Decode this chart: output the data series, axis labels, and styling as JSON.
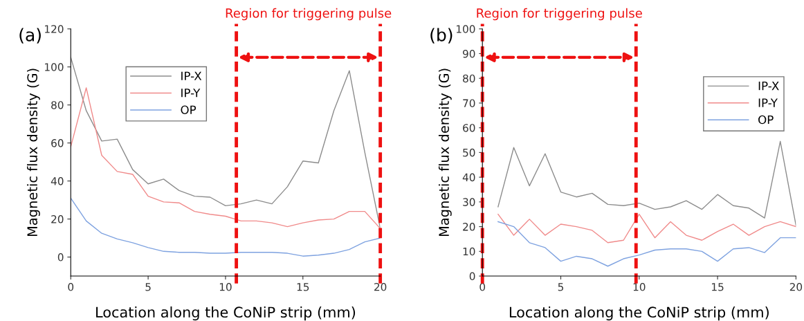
{
  "chart_data": [
    {
      "type": "line",
      "title": "(a)",
      "xlabel": "Location along the CoNiP strip (mm)",
      "ylabel": "Magnetic flux density (G)",
      "x": [
        0,
        1,
        2,
        3,
        4,
        5,
        6,
        7,
        8,
        9,
        10,
        11,
        12,
        13,
        14,
        15,
        16,
        17,
        18,
        19,
        20
      ],
      "series": [
        {
          "name": "IP-X",
          "color": "#8c8c8c",
          "values": [
            105,
            77,
            61,
            62,
            46,
            38.5,
            41,
            35,
            32,
            31.5,
            27,
            28,
            30,
            28,
            37,
            50.5,
            49.5,
            77,
            98,
            55,
            15
          ]
        },
        {
          "name": "IP-Y",
          "color": "#f08a8a",
          "values": [
            58,
            89,
            53.5,
            45,
            43.5,
            32,
            29,
            28.5,
            24,
            22.5,
            21.5,
            19,
            19,
            18,
            16,
            18,
            19.5,
            20,
            24,
            24,
            15
          ]
        },
        {
          "name": "OP",
          "color": "#7ea2e0",
          "values": [
            31,
            19,
            12.5,
            9.5,
            7.5,
            5,
            3,
            2.5,
            2.5,
            2,
            2,
            2.5,
            2.5,
            2.5,
            2,
            0.5,
            1,
            2,
            4,
            8,
            10
          ]
        }
      ],
      "xlim": [
        0,
        20
      ],
      "ylim": [
        -10,
        120
      ],
      "xticks": [
        0,
        5,
        10,
        15,
        20
      ],
      "yticks": [
        0,
        20,
        40,
        60,
        80,
        100,
        120
      ],
      "legend": "top left",
      "grid": false,
      "ref_lines": [
        {
          "axis": "x",
          "value": 10.7,
          "color": "#ee1111",
          "line_style": "dashed"
        },
        {
          "axis": "x",
          "value": 20,
          "color": "#ee1111",
          "line_style": "dashed"
        }
      ],
      "annotations": [
        "Region for triggering pulse"
      ]
    },
    {
      "type": "line",
      "title": "(b)",
      "xlabel": "Location along the CoNiP strip (mm)",
      "ylabel": "Magnetic flux density (G)",
      "x": [
        1,
        2,
        3,
        4,
        5,
        6,
        7,
        8,
        9,
        10,
        11,
        12,
        13,
        14,
        15,
        16,
        17,
        18,
        19,
        20
      ],
      "series": [
        {
          "name": "IP-X",
          "color": "#8c8c8c",
          "values": [
            28,
            52,
            36.5,
            49.5,
            34,
            32,
            33.5,
            29,
            28.5,
            29.5,
            27,
            28,
            30.5,
            27,
            33,
            28.5,
            27.5,
            23.5,
            54.5,
            20.5
          ]
        },
        {
          "name": "IP-Y",
          "color": "#f08a8a",
          "values": [
            25,
            16.5,
            23,
            16.5,
            21,
            20,
            18.5,
            13.5,
            14.5,
            25,
            15.5,
            22,
            16.5,
            14.5,
            18,
            21,
            16.5,
            20,
            22,
            20
          ]
        },
        {
          "name": "OP",
          "color": "#7ea2e0",
          "values": [
            22,
            20,
            13.5,
            11.5,
            6,
            8,
            7,
            4,
            7,
            8.5,
            10.5,
            11,
            11,
            10,
            6,
            11,
            11.5,
            9.5,
            15.5,
            15.5
          ]
        }
      ],
      "xlim": [
        0,
        20
      ],
      "ylim": [
        0,
        100
      ],
      "xticks": [
        0,
        5,
        10,
        15,
        20
      ],
      "yticks": [
        0,
        10,
        20,
        30,
        40,
        50,
        60,
        70,
        80,
        90,
        100
      ],
      "legend": "top right",
      "grid": false,
      "ref_lines": [
        {
          "axis": "x",
          "value": 0,
          "color": "#ee1111",
          "line_style": "dashed"
        },
        {
          "axis": "x",
          "value": 9.8,
          "color": "#ee1111",
          "line_style": "dashed"
        }
      ],
      "annotations": [
        "Region for triggering pulse"
      ]
    }
  ]
}
